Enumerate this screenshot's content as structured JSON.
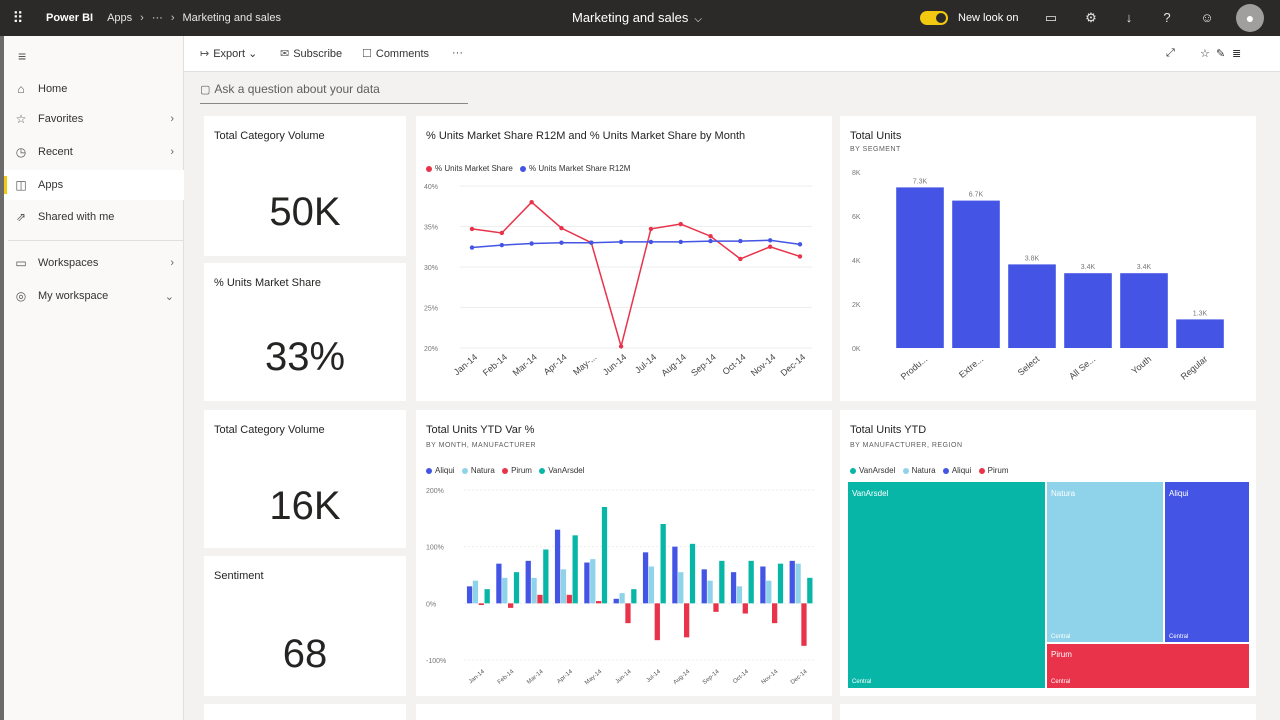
{
  "topbar": {
    "brand": "Power BI",
    "crumbs": [
      "Apps",
      "···",
      "Marketing and sales"
    ],
    "title": "Marketing and sales",
    "new_look_label": "New look on"
  },
  "sidebar": {
    "items": [
      {
        "label": "Home",
        "icon": "home-icon"
      },
      {
        "label": "Favorites",
        "icon": "star-icon"
      },
      {
        "label": "Recent",
        "icon": "clock-icon"
      },
      {
        "label": "Apps",
        "icon": "apps-icon"
      },
      {
        "label": "Shared with me",
        "icon": "share-icon"
      },
      {
        "label": "Workspaces",
        "icon": "workspaces-icon"
      },
      {
        "label": "My workspace",
        "icon": "my-workspace-icon"
      }
    ]
  },
  "actionbar": {
    "export": "Export",
    "subscribe": "Subscribe",
    "comments": "Comments",
    "more": "···"
  },
  "qna": {
    "placeholder": "Ask a question about your data"
  },
  "kpis": [
    {
      "title": "Total Category Volume",
      "value": "50K"
    },
    {
      "title": "% Units Market Share",
      "value": "33%"
    },
    {
      "title": "Total Category Volume",
      "value": "16K"
    },
    {
      "title": "Sentiment",
      "value": "68"
    }
  ],
  "colors": {
    "red": "#e8334a",
    "blue": "#4454e4",
    "lightblue": "#8fd3ea",
    "teal": "#08b6a8",
    "accent_yellow": "#f2c811"
  },
  "chart_data": [
    {
      "type": "line",
      "title": "% Units Market Share R12M and % Units Market Share by Month",
      "categories": [
        "Jan-14",
        "Feb-14",
        "Mar-14",
        "Apr-14",
        "May-...",
        "Jun-14",
        "Jul-14",
        "Aug-14",
        "Sep-14",
        "Oct-14",
        "Nov-14",
        "Dec-14"
      ],
      "yticks": [
        "40%",
        "35%",
        "30%",
        "25%",
        "20%"
      ],
      "ylim": [
        20,
        40
      ],
      "series": [
        {
          "name": "% Units Market Share",
          "color": "#e8334a",
          "values": [
            34.7,
            34.2,
            38.0,
            34.8,
            33.0,
            20.2,
            34.7,
            35.3,
            33.8,
            31.0,
            32.5,
            31.3
          ]
        },
        {
          "name": "% Units Market Share R12M",
          "color": "#4454e4",
          "values": [
            32.4,
            32.7,
            32.9,
            33.0,
            33.0,
            33.1,
            33.1,
            33.1,
            33.2,
            33.2,
            33.3,
            32.8
          ]
        }
      ]
    },
    {
      "type": "bar",
      "title": "Total Units",
      "subtitle": "BY SEGMENT",
      "categories": [
        "Produ...",
        "Extre...",
        "Select",
        "All Se...",
        "Youth",
        "Regular"
      ],
      "values": [
        7.3,
        6.7,
        3.8,
        3.4,
        3.4,
        1.3
      ],
      "data_labels": [
        "7.3K",
        "6.7K",
        "3.8K",
        "3.4K",
        "3.4K",
        "1.3K"
      ],
      "yticks": [
        "8K",
        "6K",
        "4K",
        "2K",
        "0K"
      ],
      "ylim": [
        0,
        8
      ],
      "color": "#4454e4"
    },
    {
      "type": "bar",
      "title": "Total Units YTD Var %",
      "subtitle": "BY MONTH, MANUFACTURER",
      "categories": [
        "Jan-14",
        "Feb-14",
        "Mar-14",
        "Apr-14",
        "May-14",
        "Jun-14",
        "Jul-14",
        "Aug-14",
        "Sep-14",
        "Oct-14",
        "Nov-14",
        "Dec-14"
      ],
      "yticks": [
        "200%",
        "100%",
        "0%",
        "-100%"
      ],
      "ylim": [
        -100,
        200
      ],
      "series": [
        {
          "name": "Aliqui",
          "color": "#4454e4",
          "values": [
            30,
            70,
            75,
            130,
            72,
            8,
            90,
            100,
            60,
            55,
            65,
            75
          ]
        },
        {
          "name": "Natura",
          "color": "#8fd3ea",
          "values": [
            40,
            45,
            45,
            60,
            78,
            18,
            65,
            55,
            40,
            30,
            40,
            70
          ]
        },
        {
          "name": "Pirum",
          "color": "#e8334a",
          "values": [
            -3,
            -8,
            15,
            15,
            4,
            -35,
            -65,
            -60,
            -15,
            -18,
            -35,
            -75
          ]
        },
        {
          "name": "VanArsdel",
          "color": "#08b6a8",
          "values": [
            25,
            55,
            95,
            120,
            170,
            25,
            140,
            105,
            75,
            75,
            70,
            45
          ]
        }
      ]
    },
    {
      "type": "treemap",
      "title": "Total Units YTD",
      "subtitle": "BY MANUFACTURER, REGION",
      "series": [
        {
          "name": "VanArsdel",
          "color": "#08b6a8",
          "region_label": "Central"
        },
        {
          "name": "Natura",
          "color": "#8fd3ea",
          "region_label": "Central"
        },
        {
          "name": "Aliqui",
          "color": "#4454e4",
          "region_label": "Central"
        },
        {
          "name": "Pirum",
          "color": "#e8334a",
          "region_label": "Central"
        }
      ]
    }
  ]
}
